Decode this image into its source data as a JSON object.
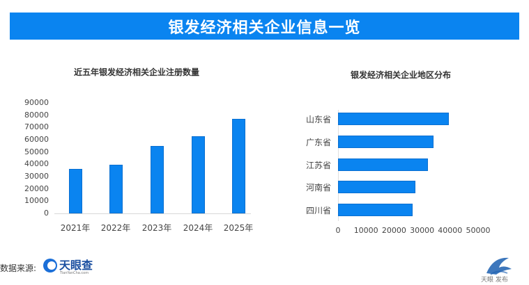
{
  "banner": {
    "title": "银发经济相关企业信息一览"
  },
  "footer": {
    "source_label": "数据来源:",
    "logo_name": "天眼查",
    "logo_sub": "TianYanCha.com",
    "watermark": "天眼 发布"
  },
  "colors": {
    "accent": "#0a84f0",
    "bar": "#0a84f0"
  },
  "chart_data": [
    {
      "type": "bar",
      "title": "近五年银发经济相关企业注册数量",
      "categories": [
        "2021年",
        "2022年",
        "2023年",
        "2024年",
        "2025年"
      ],
      "values": [
        36000,
        39500,
        55000,
        63000,
        77000
      ],
      "xlabel": "",
      "ylabel": "",
      "ylim": [
        0,
        90000
      ],
      "yticks": [
        "0",
        "10000",
        "20000",
        "30000",
        "40000",
        "50000",
        "60000",
        "70000",
        "80000",
        "90000"
      ],
      "grid": false,
      "legend": "none"
    },
    {
      "type": "bar",
      "orientation": "horizontal",
      "title": "银发经济相关企业地区分布",
      "categories": [
        "山东省",
        "广东省",
        "江苏省",
        "河南省",
        "四川省"
      ],
      "values": [
        39500,
        34000,
        32000,
        27500,
        26500
      ],
      "xlabel": "",
      "ylabel": "",
      "xlim": [
        0,
        50000
      ],
      "xticks": [
        "0",
        "10000",
        "20000",
        "30000",
        "40000",
        "50000"
      ],
      "grid": false,
      "legend": "none"
    }
  ]
}
